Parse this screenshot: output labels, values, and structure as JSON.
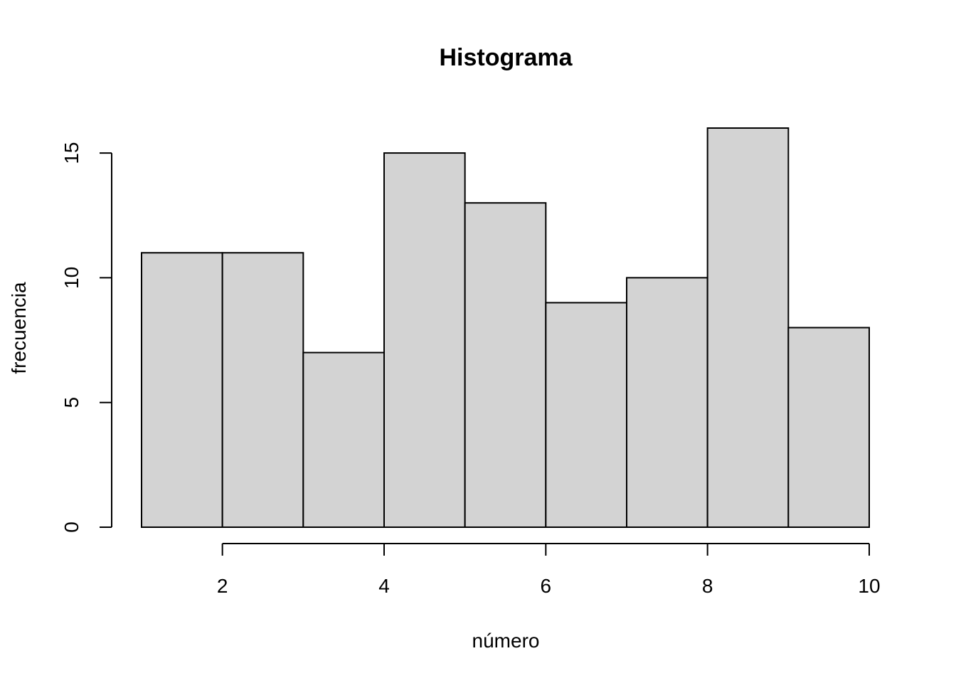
{
  "chart_data": {
    "type": "bar",
    "title": "Histograma",
    "xlabel": "número",
    "ylabel": "frecuencia",
    "bins": [
      {
        "start": 1,
        "end": 2,
        "count": 11
      },
      {
        "start": 2,
        "end": 3,
        "count": 11
      },
      {
        "start": 3,
        "end": 4,
        "count": 7
      },
      {
        "start": 4,
        "end": 5,
        "count": 15
      },
      {
        "start": 5,
        "end": 6,
        "count": 13
      },
      {
        "start": 6,
        "end": 7,
        "count": 9
      },
      {
        "start": 7,
        "end": 8,
        "count": 10
      },
      {
        "start": 8,
        "end": 9,
        "count": 16
      },
      {
        "start": 9,
        "end": 10,
        "count": 8
      }
    ],
    "xlim": [
      1,
      10
    ],
    "ylim": [
      0,
      16
    ],
    "x_ticks": [
      2,
      4,
      6,
      8,
      10
    ],
    "x_tick_labels": [
      "2",
      "4",
      "6",
      "8",
      "10"
    ],
    "y_ticks": [
      0,
      5,
      10,
      15
    ],
    "y_tick_labels": [
      "0",
      "5",
      "10",
      "15"
    ],
    "grid": false,
    "bar_fill": "#d3d3d3",
    "bar_stroke": "#000000"
  }
}
